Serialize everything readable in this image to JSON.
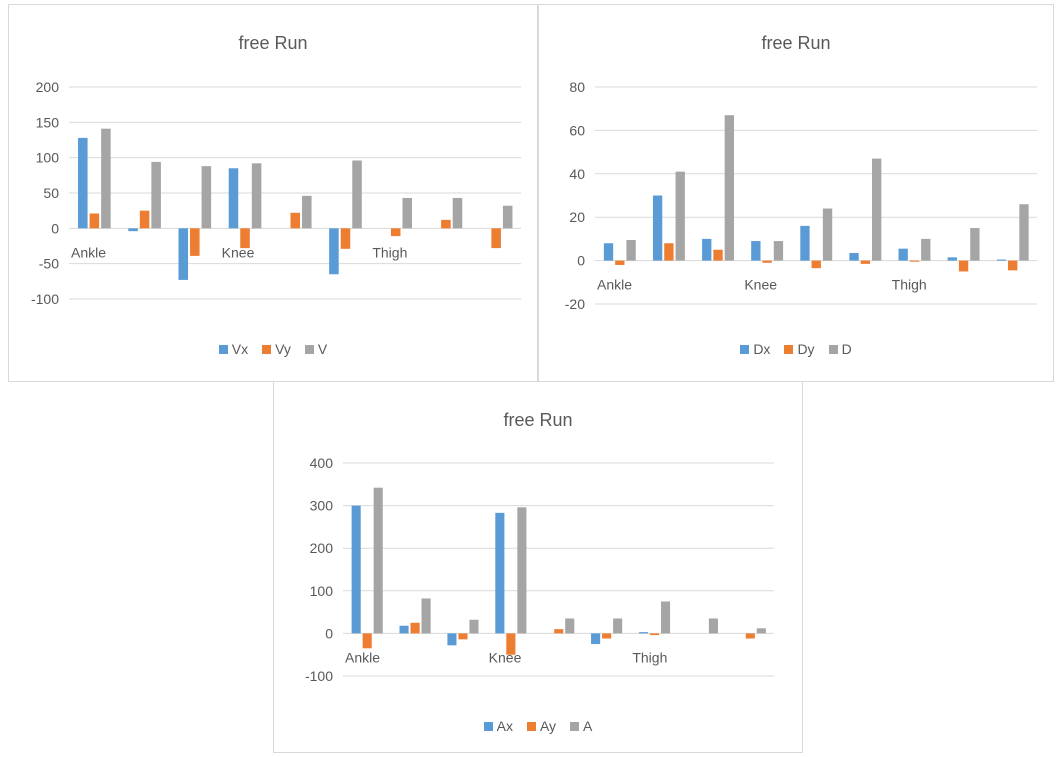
{
  "colors": {
    "series1": "#5b9bd5",
    "series2": "#ed7d31",
    "series3": "#a5a5a5",
    "grid": "#d9d9d9",
    "text": "#595959"
  },
  "chart_data": [
    {
      "type": "bar",
      "title": "free Run",
      "ylim": [
        -100,
        200
      ],
      "yticks": [
        200,
        150,
        100,
        50,
        0,
        -50,
        -100
      ],
      "categories": [
        "Ankle",
        "",
        "",
        "Knee",
        "",
        "",
        "Thigh",
        "",
        ""
      ],
      "legend_position": "bottom",
      "grid": true,
      "series": [
        {
          "name": "Vx",
          "values": [
            128,
            -4,
            -73,
            85,
            0,
            -65,
            0,
            0,
            0
          ]
        },
        {
          "name": "Vy",
          "values": [
            21,
            25,
            -39,
            -28,
            22,
            -29,
            -11,
            12,
            -28
          ]
        },
        {
          "name": "V",
          "values": [
            141,
            94,
            88,
            92,
            46,
            96,
            43,
            43,
            32
          ]
        }
      ]
    },
    {
      "type": "bar",
      "title": "free Run",
      "ylim": [
        -20,
        80
      ],
      "yticks": [
        80,
        60,
        40,
        20,
        0,
        -20
      ],
      "categories": [
        "Ankle",
        "",
        "",
        "Knee",
        "",
        "",
        "Thigh",
        "",
        ""
      ],
      "legend_position": "bottom",
      "grid": true,
      "series": [
        {
          "name": "Dx",
          "values": [
            8,
            30,
            10,
            9,
            16,
            3.5,
            5.5,
            1.5,
            0.5
          ]
        },
        {
          "name": "Dy",
          "values": [
            -2,
            8,
            5,
            -1,
            -3.5,
            -1.5,
            -0.5,
            -5,
            -4.5
          ]
        },
        {
          "name": "D",
          "values": [
            9.5,
            41,
            67,
            9,
            24,
            47,
            10,
            15,
            26
          ]
        }
      ]
    },
    {
      "type": "bar",
      "title": "free Run",
      "ylim": [
        -100,
        400
      ],
      "yticks": [
        400,
        300,
        200,
        100,
        0,
        -100
      ],
      "categories": [
        "Ankle",
        "",
        "",
        "Knee",
        "",
        "",
        "Thigh",
        "",
        ""
      ],
      "legend_position": "bottom",
      "grid": true,
      "series": [
        {
          "name": "Ax",
          "values": [
            300,
            18,
            -28,
            283,
            0,
            -25,
            3,
            0,
            0
          ]
        },
        {
          "name": "Ay",
          "values": [
            -35,
            25,
            -14,
            -50,
            10,
            -12,
            -4,
            0,
            -12
          ]
        },
        {
          "name": "A",
          "values": [
            342,
            82,
            32,
            296,
            35,
            35,
            75,
            35,
            12
          ]
        }
      ]
    }
  ]
}
